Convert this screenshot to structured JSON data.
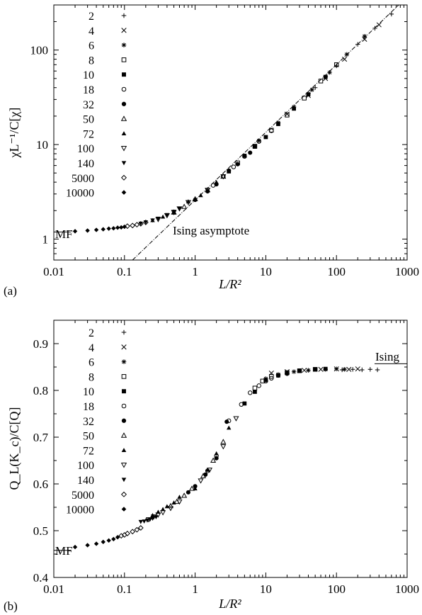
{
  "chart_data": [
    {
      "type": "scatter",
      "panel_label": "(a)",
      "xlabel": "L/R²",
      "ylabel": "χL⁻¹/C[χ]",
      "x_scale": "log",
      "y_scale": "log",
      "xlim": [
        0.01,
        1000
      ],
      "ylim": [
        0.6,
        300
      ],
      "x_ticks": [
        "0.01",
        "0.1",
        "1",
        "10",
        "100",
        "1000"
      ],
      "y_ticks": [
        "1",
        "10",
        "100"
      ],
      "legend": [
        "2",
        "4",
        "6",
        "8",
        "10",
        "18",
        "32",
        "50",
        "72",
        "100",
        "140",
        "5000",
        "10000"
      ],
      "legend_placement": "top-left",
      "annotations": {
        "mf": "MF",
        "ising_asymptote": "Ising asymptote"
      },
      "mf_level": 1.19,
      "asymptote": {
        "x": [
          0.13,
          760
        ],
        "y": [
          0.6,
          300
        ]
      },
      "series": [
        {
          "name": "10000",
          "marker": "diamond-filled",
          "x": [
            0.02,
            0.03,
            0.04,
            0.05,
            0.06,
            0.07,
            0.08,
            0.09,
            0.1
          ],
          "y": [
            1.21,
            1.23,
            1.25,
            1.27,
            1.29,
            1.3,
            1.32,
            1.33,
            1.35
          ]
        },
        {
          "name": "5000",
          "marker": "diamond-open",
          "x": [
            0.11,
            0.13,
            0.15,
            0.17,
            0.2
          ],
          "y": [
            1.37,
            1.39,
            1.42,
            1.45,
            1.5
          ]
        },
        {
          "name": "140",
          "marker": "tri-down-filled",
          "x": [
            0.17,
            0.2,
            0.25,
            0.3,
            0.4,
            0.5,
            0.6
          ],
          "y": [
            1.46,
            1.51,
            1.58,
            1.65,
            1.8,
            1.95,
            2.1
          ]
        },
        {
          "name": "100",
          "marker": "tri-down-open",
          "x": [
            0.3,
            0.4,
            0.5,
            0.6,
            0.8,
            1.5,
            2.5
          ],
          "y": [
            1.62,
            1.78,
            1.92,
            2.1,
            2.45,
            3.3,
            4.6
          ]
        },
        {
          "name": "72",
          "marker": "tri-up-filled",
          "x": [
            0.25,
            0.35,
            0.5,
            0.8,
            1.2,
            2.0
          ],
          "y": [
            1.58,
            1.72,
            1.9,
            2.5,
            2.9,
            4.0
          ]
        },
        {
          "name": "50",
          "marker": "tri-up-open",
          "x": [
            0.5,
            0.7,
            1.0,
            1.5,
            2.5
          ],
          "y": [
            1.92,
            2.2,
            2.65,
            3.3,
            4.6
          ]
        },
        {
          "name": "32",
          "marker": "circle-filled",
          "x": [
            1.0,
            1.5,
            2.0,
            3.0,
            4.0,
            6.0
          ],
          "y": [
            2.6,
            3.2,
            3.8,
            5.3,
            6.2,
            8.2
          ]
        },
        {
          "name": "18",
          "marker": "circle-open",
          "x": [
            1.8,
            2.5,
            3.5,
            5.0,
            8.0,
            12.0
          ],
          "y": [
            3.7,
            4.6,
            5.8,
            7.5,
            10.8,
            14.0
          ]
        },
        {
          "name": "10",
          "marker": "square-filled",
          "x": [
            3.0,
            5.0,
            7.0,
            10.0,
            15.0,
            25.0,
            40.0,
            70.0
          ],
          "y": [
            5.2,
            7.6,
            9.5,
            12.0,
            16.5,
            24.0,
            34.0,
            52.0
          ]
        },
        {
          "name": "8",
          "marker": "square-open",
          "x": [
            4.0,
            7.0,
            12.0,
            20.0,
            35.0,
            60.0,
            100.0
          ],
          "y": [
            6.4,
            9.6,
            14.2,
            20.5,
            31.0,
            47.0,
            70.0
          ]
        },
        {
          "name": "6",
          "marker": "asterisk",
          "x": [
            8.0,
            15.0,
            25.0,
            45.0,
            80.0,
            140.0,
            250.0
          ],
          "y": [
            11.0,
            17.0,
            25.0,
            38.0,
            58.0,
            90.0,
            140.0
          ]
        },
        {
          "name": "4",
          "marker": "x",
          "x": [
            20.0,
            40.0,
            70.0,
            130.0,
            250.0,
            400.0
          ],
          "y": [
            21.0,
            33.0,
            50.0,
            80.0,
            130.0,
            185.0
          ]
        },
        {
          "name": "2",
          "marker": "plus",
          "x": [
            50.0,
            100.0,
            200.0,
            350.0,
            600.0
          ],
          "y": [
            40.0,
            68.0,
            115.0,
            170.0,
            240.0
          ]
        }
      ]
    },
    {
      "type": "scatter",
      "panel_label": "(b)",
      "xlabel": "L/R²",
      "ylabel": "Q_L(K_c)/C[Q]",
      "x_scale": "log",
      "y_scale": "linear",
      "xlim": [
        0.01,
        1000
      ],
      "ylim": [
        0.4,
        0.95
      ],
      "x_ticks": [
        "0.01",
        "0.1",
        "1",
        "10",
        "100",
        "1000"
      ],
      "y_ticks": [
        "0.4",
        "0.5",
        "0.6",
        "0.7",
        "0.8",
        "0.9"
      ],
      "legend": [
        "2",
        "4",
        "6",
        "8",
        "10",
        "18",
        "32",
        "50",
        "72",
        "100",
        "140",
        "5000",
        "10000"
      ],
      "legend_placement": "top-left",
      "annotations": {
        "mf": "MF",
        "ising": "Ising"
      },
      "mf_level": 0.458,
      "ising_level": 0.857,
      "series": [
        {
          "name": "10000",
          "marker": "diamond-filled",
          "x": [
            0.02,
            0.03,
            0.04,
            0.05,
            0.06,
            0.07,
            0.08
          ],
          "y": [
            0.465,
            0.469,
            0.472,
            0.476,
            0.479,
            0.482,
            0.486
          ]
        },
        {
          "name": "5000",
          "marker": "diamond-open",
          "x": [
            0.09,
            0.1,
            0.11,
            0.13,
            0.15,
            0.17
          ],
          "y": [
            0.489,
            0.491,
            0.494,
            0.498,
            0.502,
            0.506
          ]
        },
        {
          "name": "140",
          "marker": "tri-down-filled",
          "x": [
            0.17,
            0.19,
            0.21,
            0.23,
            0.25,
            0.28
          ],
          "y": [
            0.519,
            0.52,
            0.522,
            0.524,
            0.526,
            0.529
          ]
        },
        {
          "name": "100",
          "marker": "tri-down-open",
          "x": [
            0.22,
            0.26,
            0.3,
            0.35,
            0.45,
            0.6,
            1.2,
            1.6,
            2.5,
            3.8
          ],
          "y": [
            0.524,
            0.53,
            0.534,
            0.539,
            0.548,
            0.562,
            0.607,
            0.63,
            0.68,
            0.74
          ]
        },
        {
          "name": "72",
          "marker": "tri-up-filled",
          "x": [
            0.25,
            0.3,
            0.35,
            0.4,
            0.5,
            0.6,
            1.0,
            1.5,
            2.0,
            3.0
          ],
          "y": [
            0.533,
            0.54,
            0.546,
            0.552,
            0.56,
            0.572,
            0.59,
            0.63,
            0.665,
            0.72
          ]
        },
        {
          "name": "50",
          "marker": "tri-up-open",
          "x": [
            0.45,
            0.55,
            0.7,
            0.9,
            1.3,
            1.8,
            2.5
          ],
          "y": [
            0.553,
            0.562,
            0.575,
            0.59,
            0.617,
            0.65,
            0.69
          ]
        },
        {
          "name": "32",
          "marker": "circle-filled",
          "x": [
            0.8,
            1.0,
            1.4,
            2.0,
            2.8
          ],
          "y": [
            0.582,
            0.595,
            0.62,
            0.655,
            0.733
          ]
        },
        {
          "name": "18",
          "marker": "circle-open",
          "x": [
            1.5,
            2.0,
            3.0,
            4.5,
            6.0,
            8.0,
            10.0,
            12.0,
            15.0,
            20.0
          ],
          "y": [
            0.628,
            0.66,
            0.735,
            0.77,
            0.795,
            0.81,
            0.82,
            0.826,
            0.832,
            0.836
          ]
        },
        {
          "name": "10",
          "marker": "square-filled",
          "x": [
            5.0,
            7.0,
            10.0,
            15.0,
            20.0,
            30.0,
            50.0,
            70.0
          ],
          "y": [
            0.772,
            0.797,
            0.822,
            0.832,
            0.837,
            0.842,
            0.845,
            0.846
          ]
        },
        {
          "name": "8",
          "marker": "square-open",
          "x": [
            7.0,
            9.0,
            12.0,
            20.0,
            30.0,
            50.0
          ],
          "y": [
            0.805,
            0.82,
            0.83,
            0.838,
            0.842,
            0.845
          ]
        },
        {
          "name": "6",
          "marker": "asterisk",
          "x": [
            10.0,
            15.0,
            25.0,
            40.0,
            70.0,
            100.0,
            130.0
          ],
          "y": [
            0.825,
            0.834,
            0.84,
            0.843,
            0.845,
            0.846,
            0.845
          ]
        },
        {
          "name": "4",
          "marker": "x",
          "x": [
            12.0,
            20.0,
            35.0,
            60.0,
            100.0,
            150.0,
            200.0
          ],
          "y": [
            0.837,
            0.84,
            0.843,
            0.845,
            0.846,
            0.845,
            0.846
          ]
        },
        {
          "name": "2",
          "marker": "plus",
          "x": [
            120.0,
            170.0,
            230.0,
            300.0,
            380.0
          ],
          "y": [
            0.844,
            0.845,
            0.844,
            0.845,
            0.844
          ]
        }
      ]
    }
  ]
}
